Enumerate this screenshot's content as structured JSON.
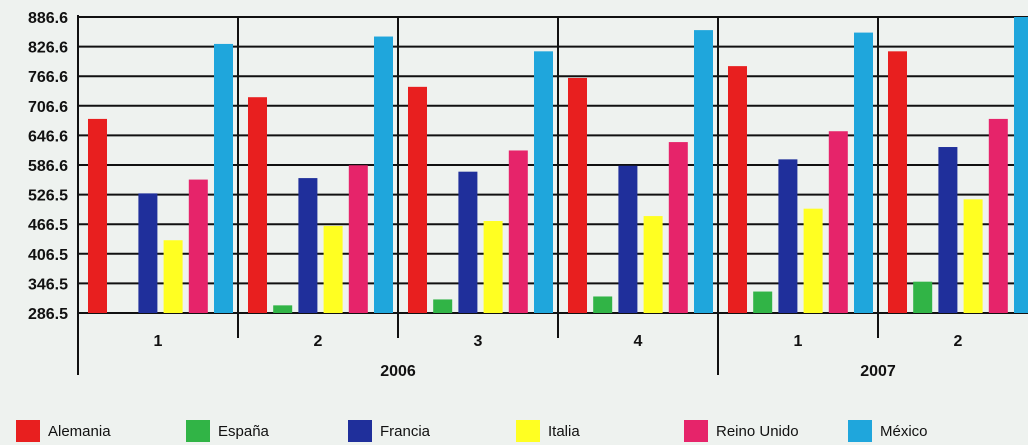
{
  "chart_data": {
    "type": "bar",
    "y_ticks": [
      "886.6",
      "826.6",
      "766.6",
      "706.6",
      "646.6",
      "586.6",
      "526.5",
      "466.5",
      "406.5",
      "346.5",
      "286.5"
    ],
    "ylim": [
      286.5,
      886.6
    ],
    "x_groups": [
      {
        "label": "2006",
        "periods": [
          "1",
          "2",
          "3",
          "4"
        ]
      },
      {
        "label": "2007",
        "periods": [
          "1",
          "2"
        ]
      }
    ],
    "categories": [
      "2006-1",
      "2006-2",
      "2006-3",
      "2006-4",
      "2007-1",
      "2007-2"
    ],
    "series": [
      {
        "name": "Alemania",
        "color": "#e81f1f",
        "values": [
          680,
          724,
          745,
          763,
          787,
          817
        ]
      },
      {
        "name": "España",
        "color": "#31b446",
        "values": [
          null,
          302,
          314,
          320,
          330,
          350
        ]
      },
      {
        "name": "Francia",
        "color": "#1f2f9b",
        "values": [
          529,
          560,
          573,
          585,
          598,
          623
        ]
      },
      {
        "name": "Italia",
        "color": "#ffff22",
        "values": [
          434,
          463,
          473,
          483,
          498,
          517
        ]
      },
      {
        "name": "Reino Unido",
        "color": "#e6246a",
        "values": [
          557,
          586,
          616,
          633,
          655,
          680
        ]
      },
      {
        "name": "México",
        "color": "#1fa6dc",
        "values": [
          832,
          847,
          817,
          860,
          855,
          886.6
        ]
      }
    ],
    "grid": true,
    "legend_position": "bottom"
  }
}
